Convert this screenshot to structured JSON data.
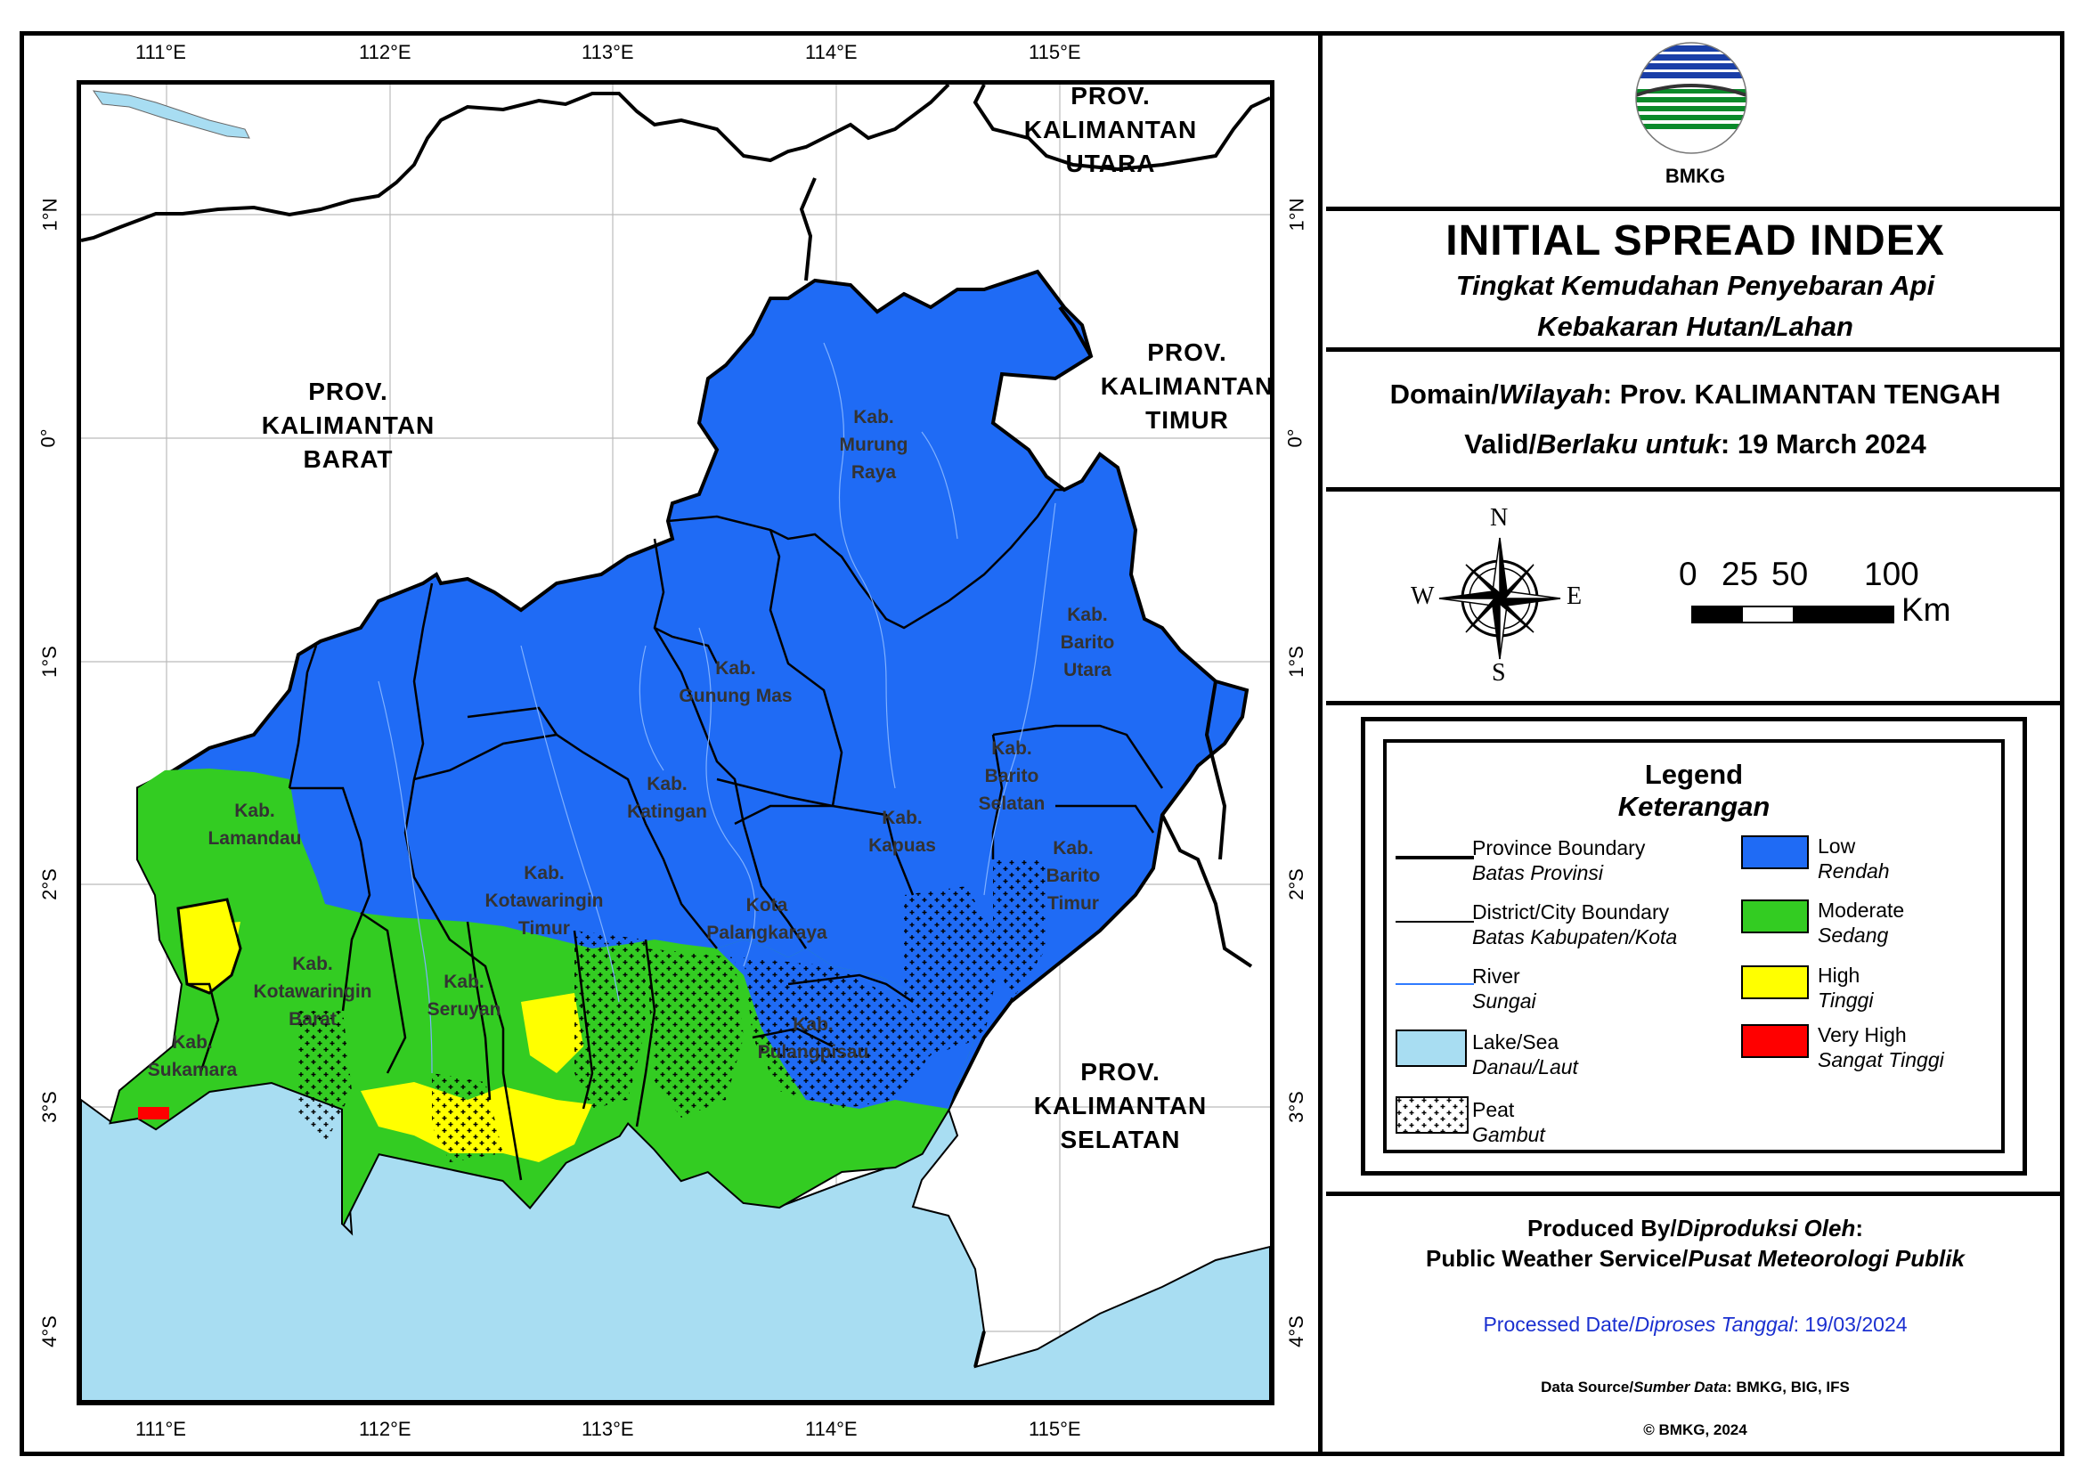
{
  "title": "INITIAL SPREAD INDEX",
  "subtitle_1": "Tingkat Kemudahan Penyebaran Api",
  "subtitle_2": "Kebakaran Hutan/Lahan",
  "logo_text": "BMKG",
  "domain": {
    "label": "Domain/",
    "label_it": "Wilayah",
    "value": ": Prov. KALIMANTAN TENGAH"
  },
  "valid": {
    "label": "Valid/",
    "label_it": "Berlaku untuk",
    "value": ": 19 March 2024"
  },
  "compass": {
    "n": "N",
    "s": "S",
    "e": "E",
    "w": "W"
  },
  "scale": {
    "labels": [
      "0",
      "25",
      "50",
      "100"
    ],
    "unit": "Km"
  },
  "legend": {
    "title": "Legend",
    "title_it": "Keterangan",
    "items": [
      {
        "en": "Province Boundary",
        "id": "Batas Provinsi"
      },
      {
        "en": "District/City Boundary",
        "id": "Batas Kabupaten/Kota"
      },
      {
        "en": "River",
        "id": "Sungai"
      },
      {
        "en": "Lake/Sea",
        "id": "Danau/Laut"
      },
      {
        "en": "Peat",
        "id": "Gambut"
      },
      {
        "en": "Low",
        "id": "Rendah",
        "color": "#1f6bf5"
      },
      {
        "en": "Moderate",
        "id": "Sedang",
        "color": "#33cc22"
      },
      {
        "en": "High",
        "id": "Tinggi",
        "color": "#ffff00"
      },
      {
        "en": "Very High",
        "id": "Sangat Tinggi",
        "color": "#ff0000"
      }
    ]
  },
  "footer": {
    "produced_a": "Produced By/",
    "produced_b": "Diproduksi Oleh",
    "produced_c": ":",
    "pws_a": "Public Weather Service/",
    "pws_b": "Pusat Meteorologi Publik",
    "processed_a": "Processed Date/",
    "processed_b": "Diproses Tanggal",
    "processed_c": ": 19/03/2024",
    "source_a": "Data Source/",
    "source_b": "Sumber Data",
    "source_c": ": BMKG, BIG, IFS",
    "copyright": "© BMKG, 2024"
  },
  "axes": {
    "lon": [
      "111°E",
      "112°E",
      "113°E",
      "114°E",
      "115°E"
    ],
    "lat": [
      "1°N",
      "0°",
      "1°S",
      "2°S",
      "3°S",
      "4°S"
    ]
  },
  "provinces": {
    "utara": [
      "PROV.",
      "KALIMANTAN",
      "UTARA"
    ],
    "barat": [
      "PROV.",
      "KALIMANTAN",
      "BARAT"
    ],
    "timur": [
      "PROV.",
      "KALIMANTAN",
      "TIMUR"
    ],
    "selatan": [
      "PROV.",
      "KALIMANTAN",
      "SELATAN"
    ]
  },
  "districts": [
    {
      "key": "murung",
      "lines": [
        "Kab.",
        "Murung",
        "Raya"
      ]
    },
    {
      "key": "barito_utara",
      "lines": [
        "Kab.",
        "Barito",
        "Utara"
      ]
    },
    {
      "key": "gunung_mas",
      "lines": [
        "Kab.",
        "Gunung Mas"
      ]
    },
    {
      "key": "katingan",
      "lines": [
        "Kab.",
        "Katingan"
      ]
    },
    {
      "key": "barito_selatan",
      "lines": [
        "Kab.",
        "Barito",
        "Selatan"
      ]
    },
    {
      "key": "kapuas",
      "lines": [
        "Kab.",
        "Kapuas"
      ]
    },
    {
      "key": "barito_timur",
      "lines": [
        "Kab.",
        "Barito",
        "Timur"
      ]
    },
    {
      "key": "lamandau",
      "lines": [
        "Kab.",
        "Lamandau"
      ]
    },
    {
      "key": "kotim",
      "lines": [
        "Kab.",
        "Kotawaringin",
        "Timur"
      ]
    },
    {
      "key": "palangka",
      "lines": [
        "Kota",
        "Palangkaraya"
      ]
    },
    {
      "key": "kobar",
      "lines": [
        "Kab.",
        "Kotawaringin",
        "Barat"
      ]
    },
    {
      "key": "seruyan",
      "lines": [
        "Kab.",
        "Seruyan"
      ]
    },
    {
      "key": "pulang",
      "lines": [
        "Kab.",
        "Pulangpisau"
      ]
    },
    {
      "key": "sukamara",
      "lines": [
        "Kab.",
        "Sukamara"
      ]
    }
  ]
}
